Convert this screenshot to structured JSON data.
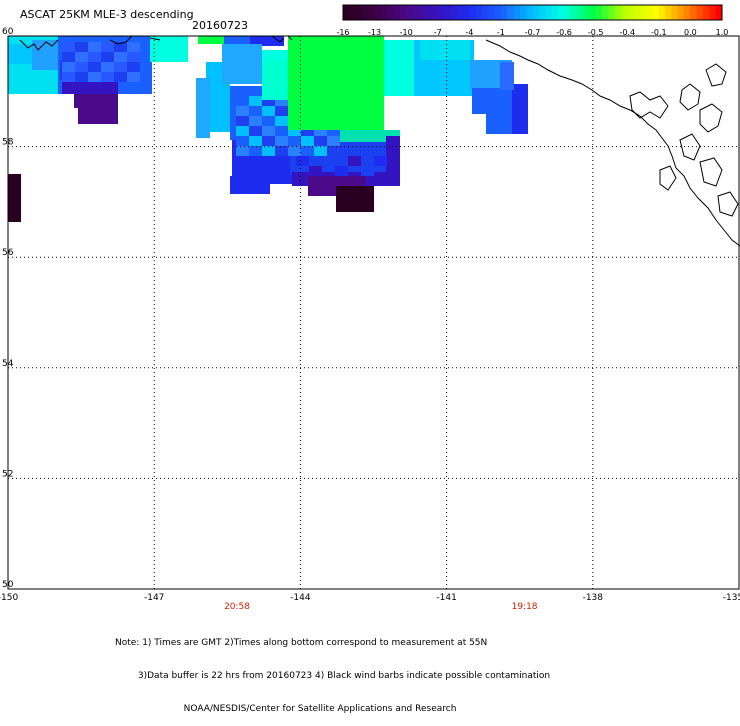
{
  "title": "ASCAT 25KM MLE-3 descending",
  "date": "20160723",
  "colorbar": {
    "labels": [
      "-16",
      "-13",
      "-10",
      "-7",
      "-4",
      "-1",
      "-0.7",
      "-0.6",
      "-0.5",
      "-0.4",
      "-0.1",
      "0.0",
      "1.0"
    ],
    "colors": [
      "#2a0020",
      "#3d0048",
      "#4a0a8a",
      "#3414c0",
      "#1e2cf0",
      "#1a60ff",
      "#00c0ff",
      "#00ffe0",
      "#00ff40",
      "#c0ff00",
      "#ffff00",
      "#ff8000",
      "#ff0000"
    ]
  },
  "map": {
    "lat_ticks": [
      "60",
      "58",
      "56",
      "54",
      "52",
      "50"
    ],
    "lon_ticks": [
      "-150",
      "-147",
      "-144",
      "-141",
      "-138",
      "-135"
    ],
    "pass_times": [
      {
        "label": "20:58",
        "lon": -145.3
      },
      {
        "label": "19:18",
        "lon": -139.4
      }
    ]
  },
  "notes": {
    "line1": "Note: 1) Times are GMT 2)Times along bottom correspond to measurement at 55N",
    "line2": "        3)Data buffer is 22 hrs from 20160723 4) Black wind barbs indicate possible contamination",
    "line3": "                        NOAA/NESDIS/Center for Satellite Applications and Research"
  }
}
